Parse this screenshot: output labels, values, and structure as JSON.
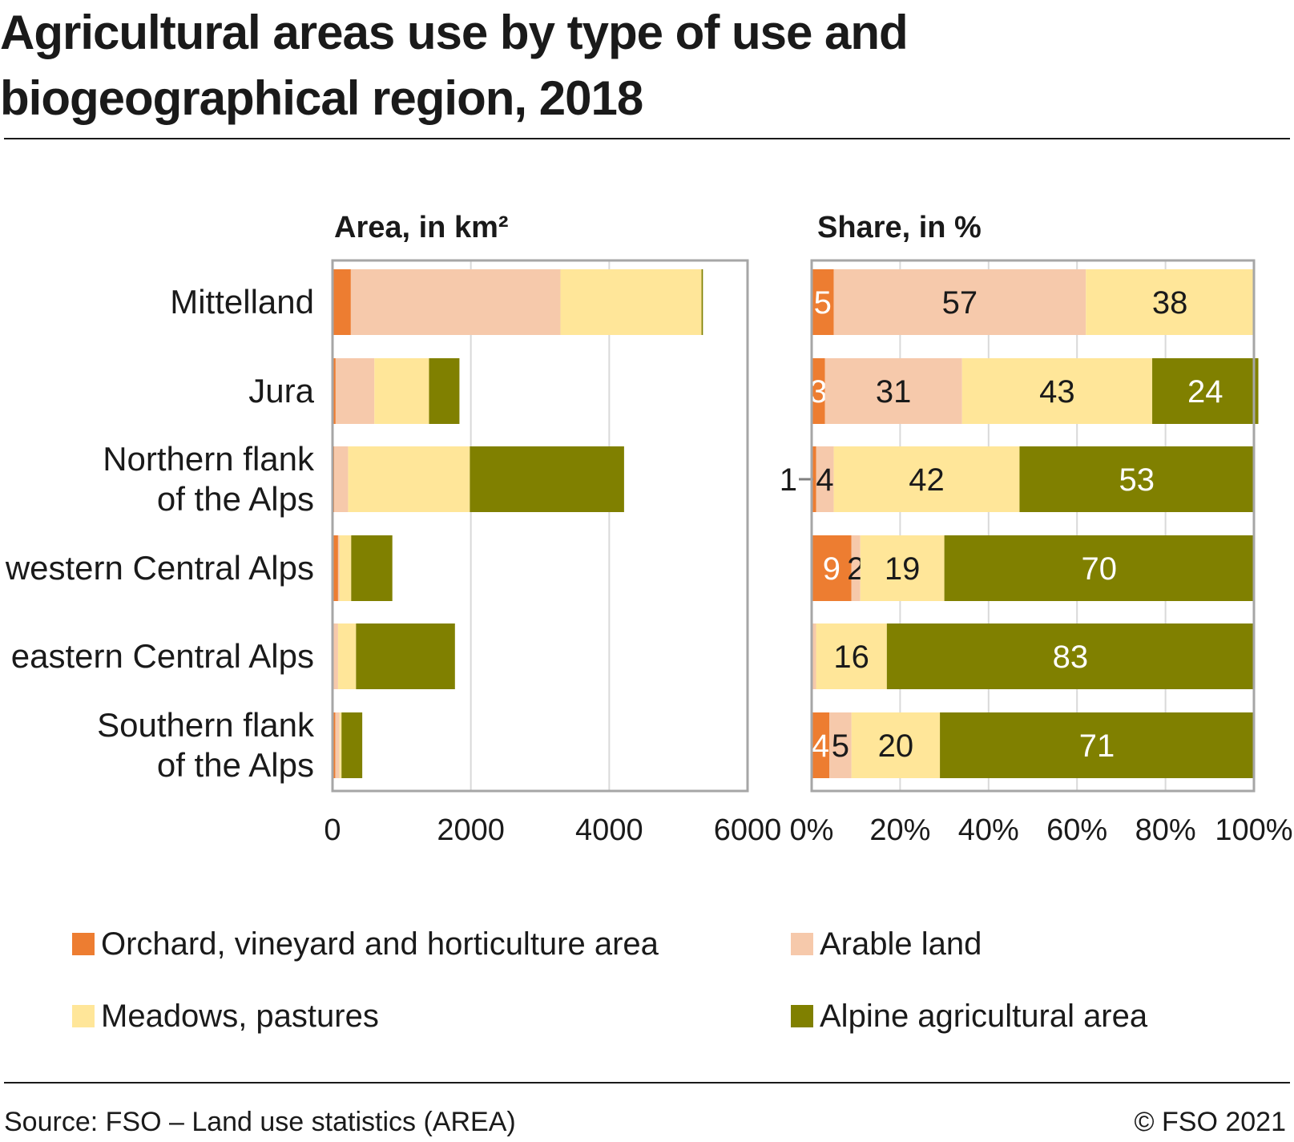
{
  "title_lines": [
    "Agricultural areas use by type of use and",
    "biogeographical region, 2018"
  ],
  "footer": {
    "source": "Source: FSO – Land use statistics (AREA)",
    "copyright": "© FSO 2021"
  },
  "colors": {
    "orchard": "#ed7d31",
    "arable": "#f6c9ab",
    "meadows": "#ffe699",
    "alpine": "#808000",
    "frame": "#a6a6a6",
    "grid": "#d9d9d9"
  },
  "chart_data": [
    {
      "type": "bar",
      "orientation": "horizontal",
      "stacked": true,
      "title": "Area, in km²",
      "categories": [
        "Mittelland",
        "Jura",
        "Northern flank\nof the Alps",
        "western Central Alps",
        "eastern Central Alps",
        "Southern flank\nof the Alps"
      ],
      "series": [
        {
          "name": "Orchard, vineyard and horticulture area",
          "values": [
            265,
            45,
            25,
            80,
            10,
            40
          ]
        },
        {
          "name": "Arable land",
          "values": [
            3030,
            560,
            200,
            20,
            70,
            60
          ]
        },
        {
          "name": "Meadows, pastures",
          "values": [
            2040,
            790,
            1760,
            170,
            260,
            30
          ]
        },
        {
          "name": "Alpine agricultural area",
          "values": [
            20,
            440,
            2230,
            595,
            1430,
            300
          ]
        }
      ],
      "xlim": [
        0,
        6000
      ],
      "xticks": [
        "0",
        "2000",
        "4000",
        "6000"
      ],
      "grid": true
    },
    {
      "type": "bar",
      "orientation": "horizontal",
      "stacked": true,
      "title": "Share, in %",
      "categories": [
        "Mittelland",
        "Jura",
        "Northern flank\nof the Alps",
        "western Central Alps",
        "eastern Central Alps",
        "Southern flank\nof the Alps"
      ],
      "series": [
        {
          "name": "Orchard, vineyard and horticulture area",
          "values": [
            5,
            3,
            1,
            9,
            0,
            4
          ],
          "labels": [
            "5",
            "3",
            "1",
            "9",
            "",
            "4"
          ]
        },
        {
          "name": "Arable land",
          "values": [
            57,
            31,
            4,
            2,
            1,
            5
          ],
          "labels": [
            "57",
            "31",
            "4",
            "2",
            "",
            "5"
          ]
        },
        {
          "name": "Meadows, pastures",
          "values": [
            38,
            43,
            42,
            19,
            16,
            20
          ],
          "labels": [
            "38",
            "43",
            "42",
            "19",
            "16",
            "20"
          ]
        },
        {
          "name": "Alpine agricultural area",
          "values": [
            0,
            24,
            53,
            70,
            83,
            71
          ],
          "labels": [
            "",
            "24",
            "53",
            "70",
            "83",
            "71"
          ]
        }
      ],
      "xlim": [
        0,
        100
      ],
      "xticks": [
        "0%",
        "20%",
        "40%",
        "60%",
        "80%",
        "100%"
      ],
      "grid": true
    }
  ],
  "legend": [
    {
      "label": "Orchard, vineyard and horticulture area",
      "color_key": "orchard"
    },
    {
      "label": "Arable land",
      "color_key": "arable"
    },
    {
      "label": "Meadows, pastures",
      "color_key": "meadows"
    },
    {
      "label": "Alpine agricultural area",
      "color_key": "alpine"
    }
  ]
}
